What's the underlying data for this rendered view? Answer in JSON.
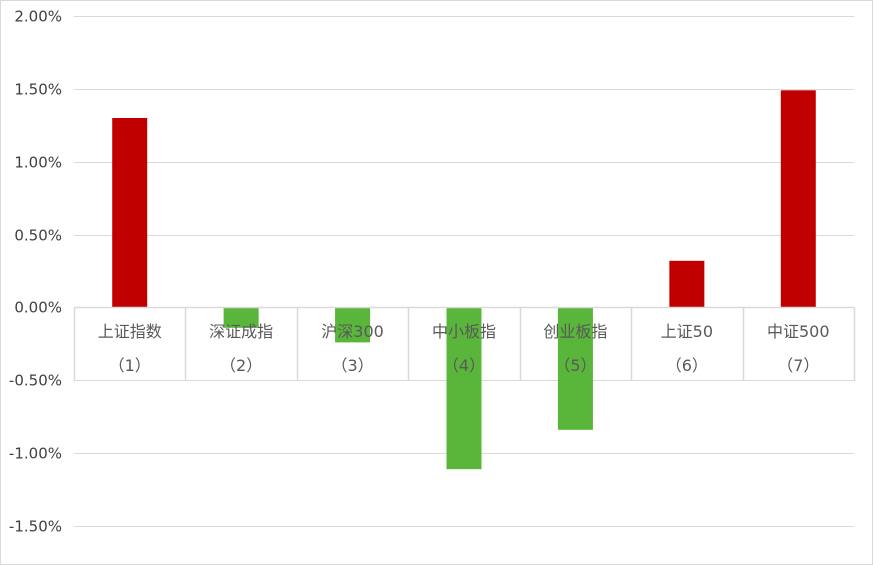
{
  "chart_data": {
    "type": "bar",
    "categories": [
      {
        "name": "上证指数",
        "index": "（1）"
      },
      {
        "name": "深证成指",
        "index": "（2）"
      },
      {
        "name": "沪深300",
        "index": "（3）"
      },
      {
        "name": "中小板指",
        "index": "（4）"
      },
      {
        "name": "创业板指",
        "index": "（5）"
      },
      {
        "name": "上证50",
        "index": "（6）"
      },
      {
        "name": "中证500",
        "index": "（7）"
      }
    ],
    "values": [
      1.3,
      -0.14,
      -0.24,
      -1.11,
      -0.84,
      0.32,
      1.49
    ],
    "ylim": [
      -1.5,
      2.0
    ],
    "yticks": [
      2.0,
      1.5,
      1.0,
      0.5,
      0.0,
      -0.5,
      -1.0,
      -1.5
    ],
    "ytick_labels": [
      "2.00%",
      "1.50%",
      "1.00%",
      "0.50%",
      "0.00%",
      "-0.50%",
      "-1.00%",
      "-1.50%"
    ],
    "grid": true,
    "legend": "none",
    "colors": {
      "positive": "#c00000",
      "negative": "#5ab63b",
      "grid": "#d9d9d9",
      "axis": "#d9d9d9",
      "text": "#404040"
    }
  }
}
